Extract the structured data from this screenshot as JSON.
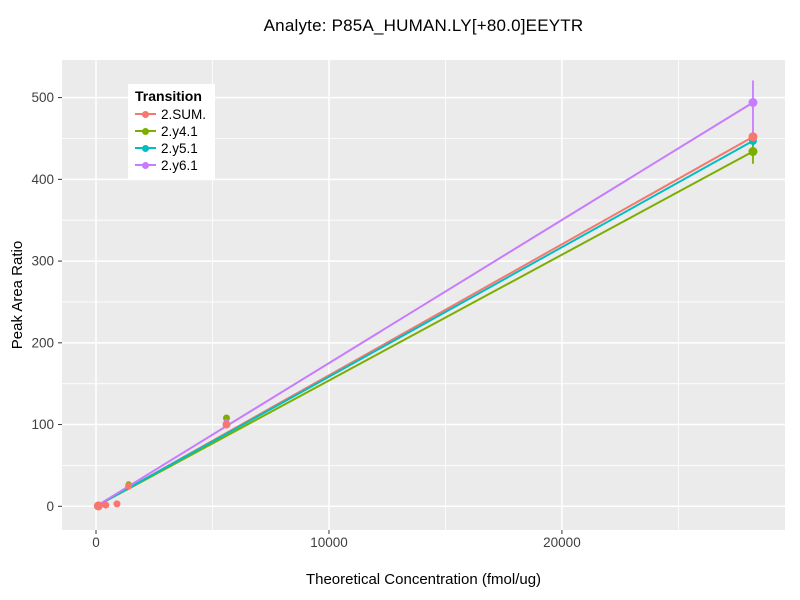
{
  "chart_data": {
    "type": "line",
    "title": "Analyte: P85A_HUMAN.LY[+80.0]EEYTR",
    "xlabel": "Theoretical Concentration (fmol/ug)",
    "ylabel": "Peak Area Ratio",
    "legend_title": "Transition",
    "legend_position": "top-left-inside",
    "panel_bg": "#EBEBEB",
    "grid_color": "#FFFFFF",
    "tick_color": "#333333",
    "tick_label_color": "#404040",
    "xlim": [
      -1460,
      29575
    ],
    "ylim": [
      -29,
      546
    ],
    "x_ticks": [
      0,
      10000,
      20000
    ],
    "x_minor_ticks": [
      5000,
      15000,
      25000
    ],
    "y_ticks": [
      0,
      100,
      200,
      300,
      400,
      500
    ],
    "y_minor_ticks": [
      50,
      150,
      250,
      350,
      450
    ],
    "series": [
      {
        "name": "2.SUM.",
        "color": "#F8766D",
        "line": [
          [
            0,
            0
          ],
          [
            28200,
            452
          ]
        ],
        "points": [
          [
            100,
            0.5,
            4.5
          ],
          [
            420,
            1.5,
            3.5
          ],
          [
            900,
            3,
            3.5
          ],
          [
            1400,
            25,
            3.5
          ],
          [
            5600,
            100,
            4
          ],
          [
            28200,
            452,
            4.5
          ]
        ],
        "error_bar": {
          "x": 28200,
          "low": 446,
          "high": 459
        }
      },
      {
        "name": "2.y4.1",
        "color": "#7CAE00",
        "line": [
          [
            0,
            0
          ],
          [
            28200,
            434
          ]
        ],
        "points": [
          [
            1400,
            27,
            3
          ],
          [
            5600,
            108,
            3.5
          ],
          [
            28200,
            434,
            4.5
          ]
        ],
        "error_bar": {
          "x": 28200,
          "low": 419,
          "high": 446
        }
      },
      {
        "name": "2.y5.1",
        "color": "#00BFC4",
        "line": [
          [
            0,
            0
          ],
          [
            28200,
            447
          ]
        ],
        "points": [
          [
            28200,
            447,
            4
          ]
        ],
        "error_bar": {
          "x": 28200,
          "low": 441,
          "high": 454
        }
      },
      {
        "name": "2.y6.1",
        "color": "#C77CFF",
        "line": [
          [
            0,
            0
          ],
          [
            28200,
            494
          ]
        ],
        "points": [
          [
            5600,
            103,
            3
          ],
          [
            28200,
            494,
            4.5
          ]
        ],
        "error_bar": {
          "x": 28200,
          "low": 445,
          "high": 521
        }
      }
    ]
  }
}
